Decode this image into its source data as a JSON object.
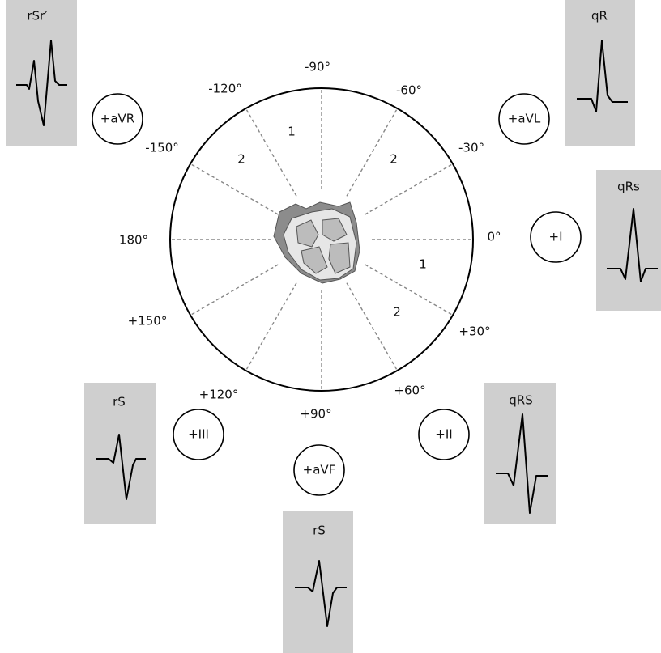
{
  "angles": [
    "-90°",
    "-60°",
    "-30°",
    "0°",
    "+30°",
    "+60°",
    "+90°",
    "+120°",
    "+150°",
    "180°",
    "-150°",
    "-120°"
  ],
  "sectors": [
    "1",
    "2",
    "2",
    "1",
    "2"
  ],
  "leads": [
    "+aVR",
    "+aVL",
    "+I",
    "+II",
    "+aVF",
    "+III"
  ],
  "waveforms": [
    "rSr′",
    "qR",
    "qRs",
    "rS",
    "qRS",
    "rS"
  ]
}
